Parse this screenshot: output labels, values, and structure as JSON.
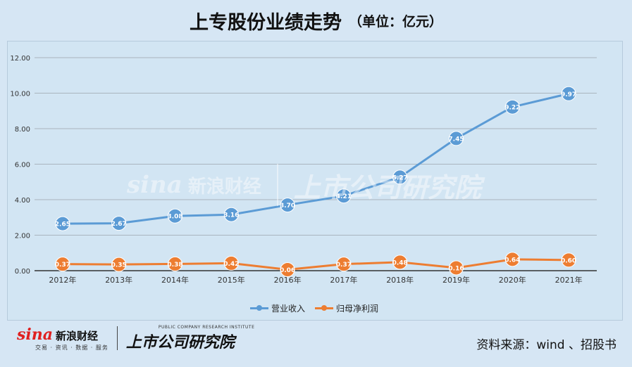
{
  "header": {
    "title": "上专股份业绩走势",
    "unit": "（单位：亿元）"
  },
  "footer": {
    "sina_word": "sina",
    "sina_cn": "新浪财经",
    "sina_sub": "交易 · 资讯 · 数据 · 服务",
    "research_en": "PUBLIC COMPANY RESEARCH INSTITUTE",
    "research_cn": "上市公司研究院",
    "source": "资料来源：wind 、招股书"
  },
  "watermark": {
    "sina_word": "sina",
    "sina_cn": "新浪财经",
    "research_cn": "上市公司研究院"
  },
  "chart_data": {
    "type": "line",
    "title": "上专股份业绩走势",
    "subtitle": "（单位：亿元）",
    "xlabel": "",
    "ylabel": "",
    "categories": [
      "2012年",
      "2013年",
      "2014年",
      "2015年",
      "2016年",
      "2017年",
      "2018年",
      "2019年",
      "2020年",
      "2021年"
    ],
    "ylim": [
      0,
      12
    ],
    "yticks": [
      "0.00",
      "2.00",
      "4.00",
      "6.00",
      "8.00",
      "10.00",
      "12.00"
    ],
    "grid": true,
    "legend_position": "bottom",
    "series": [
      {
        "name": "营业收入",
        "color": "#5b9bd5",
        "values": [
          2.65,
          2.67,
          3.08,
          3.16,
          3.7,
          4.21,
          5.27,
          7.45,
          9.22,
          9.97
        ],
        "labels": [
          "2.65",
          "2.67",
          "3.08",
          "3.16",
          "3.70",
          "4.21",
          "5.27",
          "7.45",
          "9.22",
          "9.97"
        ]
      },
      {
        "name": "归母净利润",
        "color": "#ed7d31",
        "values": [
          0.37,
          0.35,
          0.38,
          0.42,
          0.06,
          0.37,
          0.48,
          0.16,
          0.64,
          0.6
        ],
        "labels": [
          "0.37",
          "0.35",
          "0.38",
          "0.42",
          "0.06",
          "0.37",
          "0.48",
          "0.16",
          "0.64",
          "0.60"
        ]
      }
    ]
  }
}
